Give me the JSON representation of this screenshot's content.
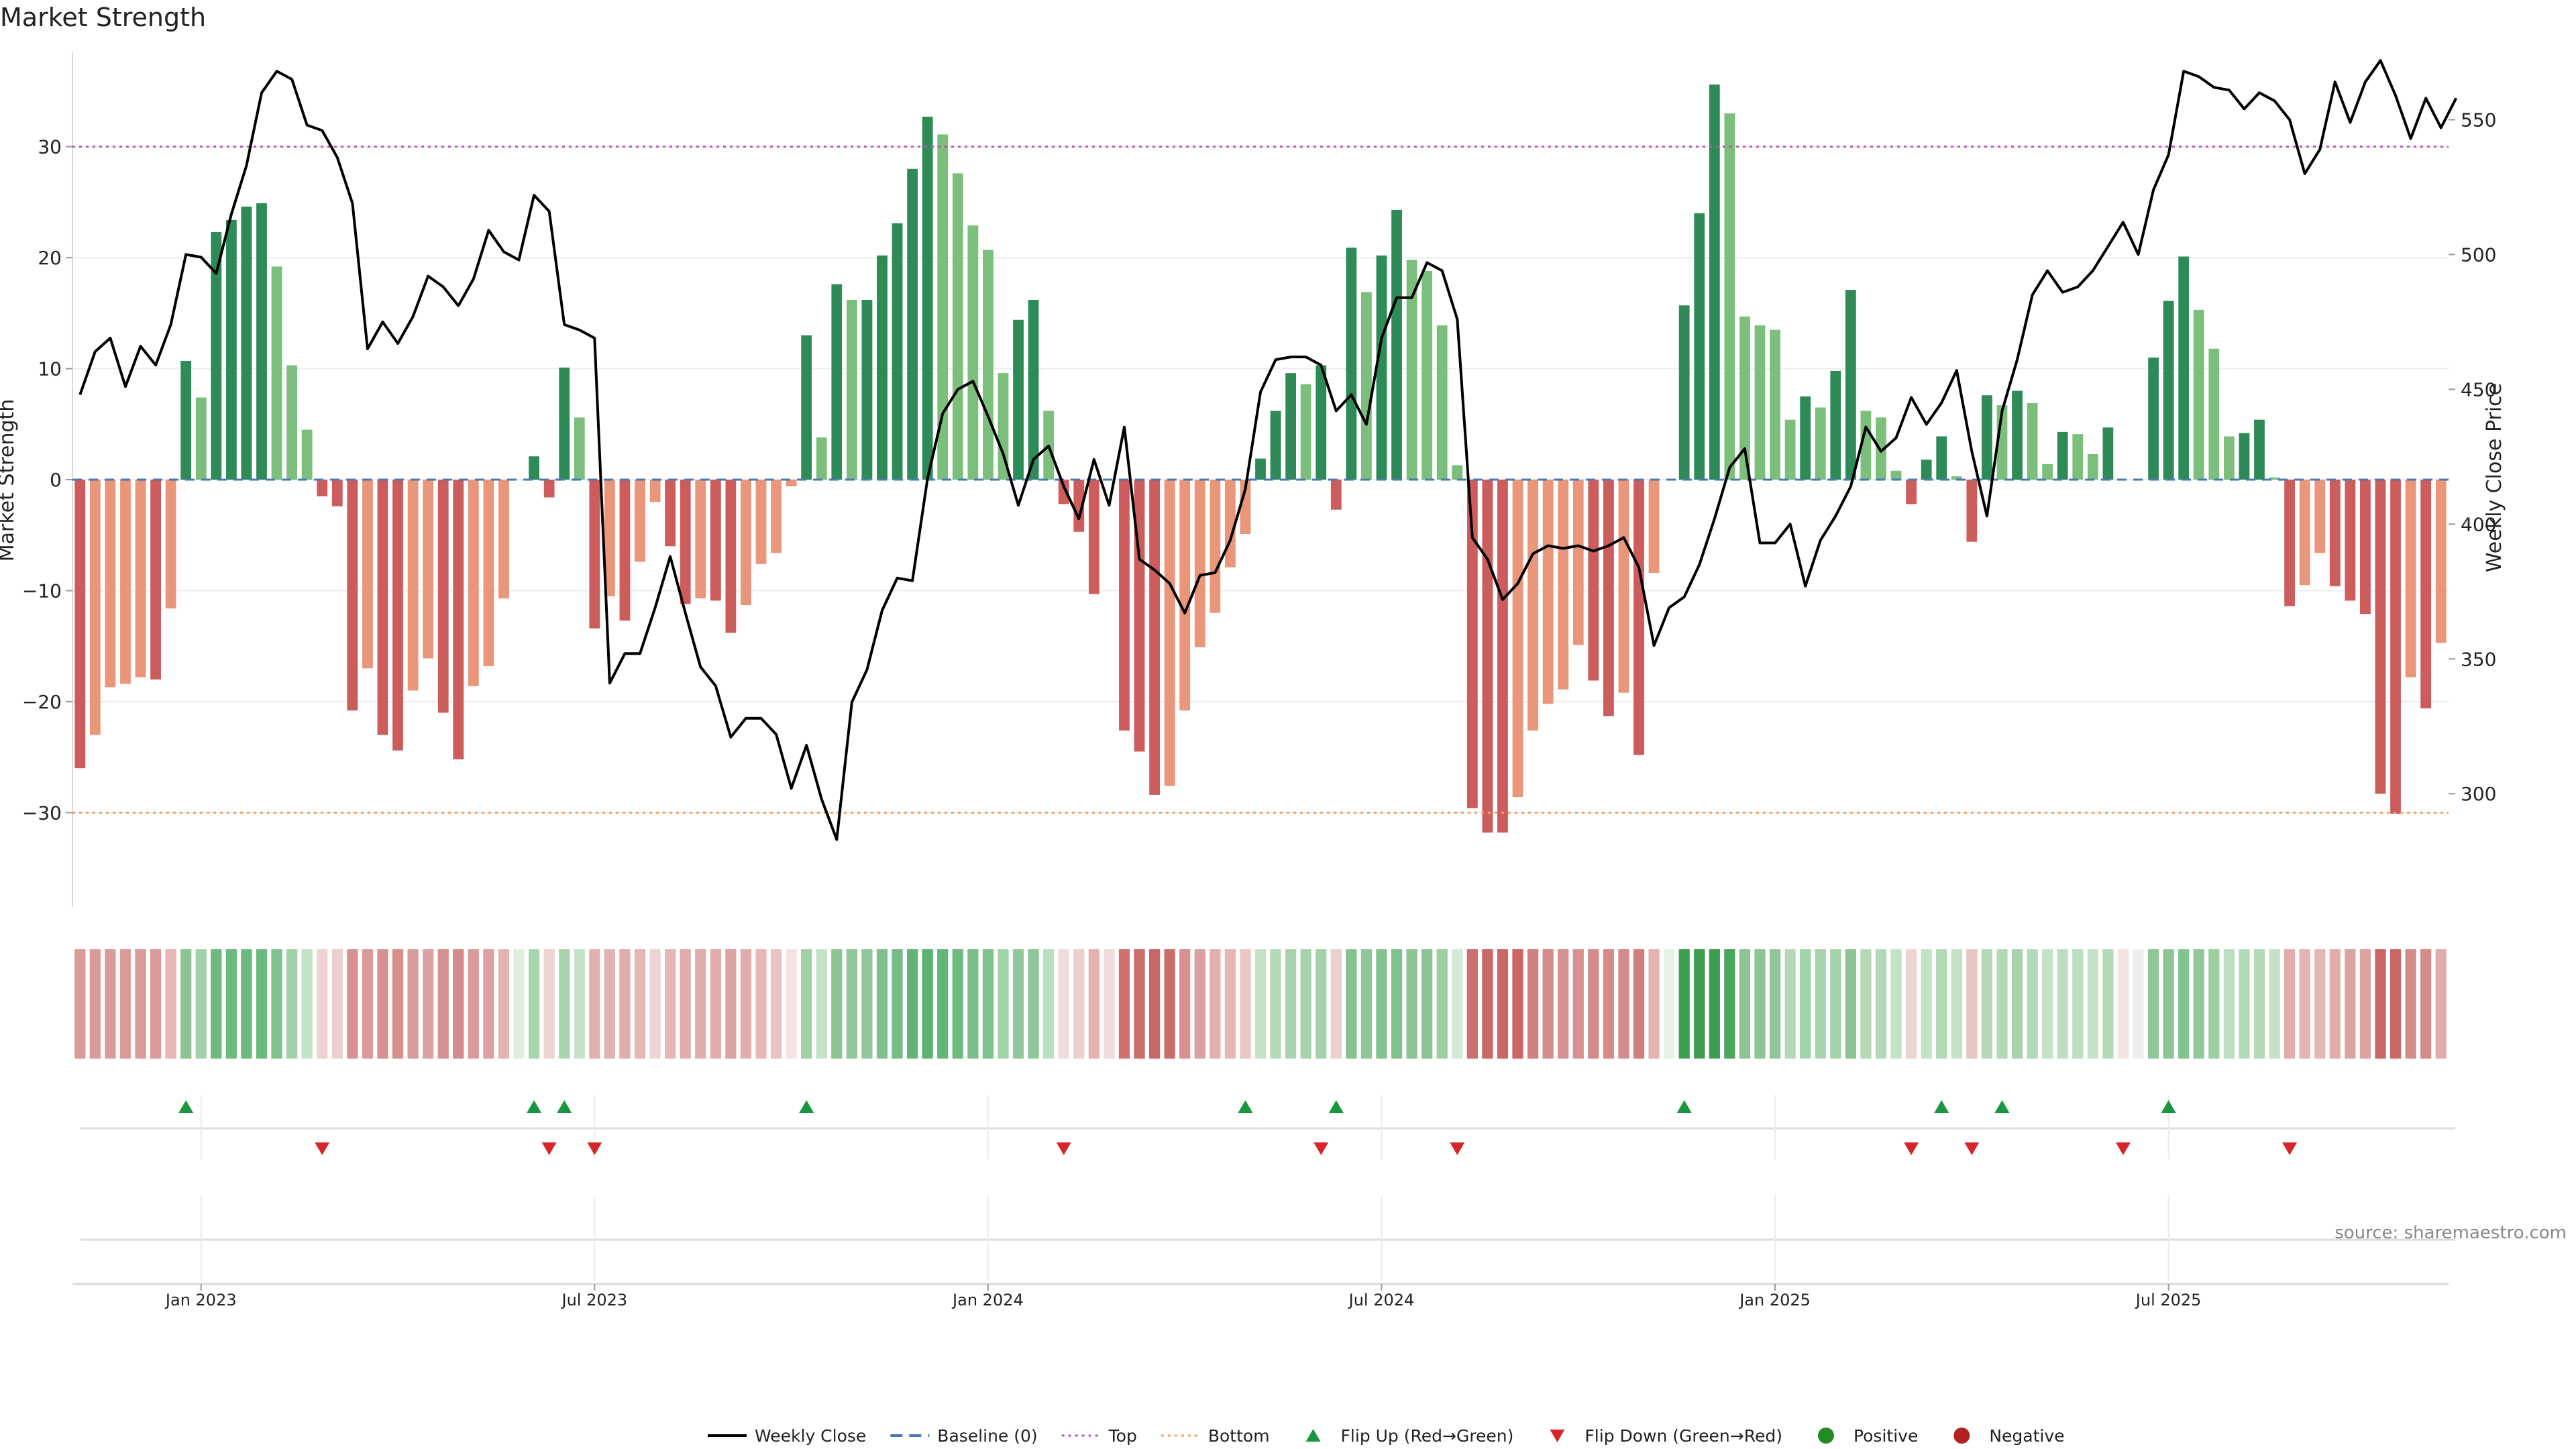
{
  "chart_data": {
    "type": "bar",
    "title": "Market Strength",
    "ylabel": "Market Strength",
    "ylabel_right": "Weekly Close Price",
    "source": "source: sharemaestro.com",
    "ylim": [
      -38.5,
      38.5
    ],
    "ylim_right": [
      258,
      575
    ],
    "y_ticks": [
      -30,
      -20,
      -10,
      0,
      10,
      20,
      30
    ],
    "y_tick_labels": [
      "−30",
      "−20",
      "−10",
      "0",
      "10",
      "20",
      "30"
    ],
    "y_right_ticks": [
      300,
      350,
      400,
      450,
      500,
      550
    ],
    "y_right_tick_labels": [
      "300",
      "350",
      "400",
      "450",
      "500",
      "550"
    ],
    "top_level": 30,
    "bottom_level": -30,
    "x_ticks": [
      8,
      34,
      60,
      86,
      112,
      138
    ],
    "x_tick_labels": [
      "Jan 2023",
      "Jul 2023",
      "Jan 2024",
      "Jul 2024",
      "Jan 2025",
      "Jul 2025"
    ],
    "strength": [
      -26,
      -23,
      -18.7,
      -18.4,
      -17.8,
      -18,
      -11.6,
      10.7,
      7.4,
      22.3,
      23.4,
      24.6,
      24.9,
      19.2,
      10.3,
      4.5,
      -1.5,
      -2.4,
      -20.8,
      -17,
      -23,
      -24.4,
      -19,
      -16.1,
      -21,
      -25.2,
      -18.6,
      -16.8,
      -10.7,
      0,
      2.1,
      -1.6,
      10.1,
      5.6,
      -13.4,
      -10.5,
      -12.7,
      -7.4,
      -2,
      -6,
      -11.2,
      -10.7,
      -10.9,
      -13.8,
      -11.3,
      -7.6,
      -6.6,
      -0.6,
      13,
      3.8,
      17.6,
      16.2,
      16.2,
      20.2,
      23.1,
      28,
      32.7,
      31.1,
      27.6,
      22.9,
      20.7,
      9.6,
      14.4,
      16.2,
      6.2,
      -2.2,
      -4.7,
      -10.3,
      0,
      -22.6,
      -24.5,
      -28.4,
      -27.6,
      -20.8,
      -15.1,
      -12,
      -7.9,
      -4.9,
      1.9,
      6.2,
      9.6,
      8.6,
      10.3,
      -2.7,
      20.9,
      16.9,
      20.2,
      24.3,
      19.8,
      18.8,
      13.9,
      1.3,
      -29.6,
      -31.8,
      -31.8,
      -28.6,
      -22.6,
      -20.2,
      -18.9,
      -14.9,
      -18.1,
      -21.3,
      -19.2,
      -24.8,
      -8.4,
      0,
      15.7,
      24,
      35.6,
      33,
      14.7,
      13.9,
      13.5,
      5.4,
      7.5,
      6.5,
      9.8,
      17.1,
      6.2,
      5.6,
      0.8,
      -2.2,
      1.8,
      3.9,
      0.3,
      -5.6,
      7.6,
      6.7,
      8,
      6.9,
      1.4,
      4.3,
      4.1,
      2.3,
      4.7,
      0,
      0,
      11,
      16.1,
      20.1,
      15.3,
      11.8,
      3.9,
      4.2,
      5.4,
      0.2,
      -11.4,
      -9.5,
      -6.6,
      -9.6,
      -10.9,
      -12.1,
      -28.3,
      -30.1,
      -17.8,
      -20.6,
      -14.7
    ],
    "price": [
      448,
      464,
      469,
      451,
      466,
      459,
      474,
      500,
      499,
      493,
      515,
      533,
      560,
      568,
      565,
      548,
      546,
      536,
      519,
      465,
      475,
      467,
      477,
      492,
      488,
      481,
      491,
      509,
      501,
      498,
      522,
      516,
      474,
      472,
      469,
      341,
      352,
      352,
      369,
      388,
      367,
      347,
      340,
      321,
      328,
      328,
      322,
      302,
      318,
      298,
      283,
      334,
      346,
      368,
      380,
      379,
      417,
      441,
      450,
      453,
      440,
      426,
      407,
      424,
      429,
      414,
      402,
      424,
      407,
      436,
      387,
      383,
      378,
      367,
      381,
      382,
      394,
      413,
      449,
      461,
      462,
      462,
      459,
      442,
      448,
      437,
      469,
      484,
      484,
      497,
      494,
      476,
      395,
      387,
      372,
      378,
      389,
      392,
      391,
      392,
      390,
      392,
      395,
      384,
      355,
      369,
      373,
      385,
      402,
      421,
      428,
      393,
      393,
      400,
      377,
      394,
      403,
      414,
      436,
      427,
      432,
      447,
      437,
      445,
      457,
      427,
      403,
      442,
      461,
      485,
      494,
      486,
      488,
      494,
      503,
      512,
      500,
      524,
      537,
      568,
      566,
      562,
      561,
      554,
      560,
      557,
      550,
      530,
      539,
      564,
      549,
      564,
      572,
      559,
      543,
      558,
      547,
      558
    ],
    "heat": [
      "#d99a9a",
      "#d99a9a",
      "#db9b9b",
      "#db9b9b",
      "#d99a9a",
      "#db9b9b",
      "#e5b7b5",
      "#8cc496",
      "#a3d1a8",
      "#6dba7f",
      "#6dba7f",
      "#6ab97d",
      "#6ab97d",
      "#7ec18d",
      "#a1d0a6",
      "#c3e2c6",
      "#edd3d1",
      "#ead0ce",
      "#d69190",
      "#d99a9a",
      "#d69190",
      "#d49089",
      "#d99a9a",
      "#dba0a0",
      "#d69190",
      "#d48b8b",
      "#d99a9a",
      "#dba0a0",
      "#e2b3b1",
      "#e0eee0",
      "#a9d5ae",
      "#edd3d1",
      "#a8d4ad",
      "#c3e2c6",
      "#e2b0ae",
      "#e2b3b1",
      "#e0adab",
      "#e5b7b5",
      "#edd3d1",
      "#e5b7b5",
      "#e0adab",
      "#e0adab",
      "#e0adab",
      "#dca3a1",
      "#e0adab",
      "#e5b7b5",
      "#e8c3c1",
      "#f3e3e2",
      "#a0d0a6",
      "#c3e2c6",
      "#8cc496",
      "#90c69a",
      "#90c69a",
      "#7ec18d",
      "#74bd85",
      "#63b577",
      "#5cb271",
      "#63b577",
      "#6dba7f",
      "#79bf89",
      "#7ec18d",
      "#a3d1a8",
      "#93c89d",
      "#90c69a",
      "#bcdfc0",
      "#efdcdb",
      "#ead0ce",
      "#e2b3b1",
      "#efdcdb",
      "#d06f6d",
      "#ca6d6c",
      "#c96766",
      "#ca6d6c",
      "#d69190",
      "#dba0a0",
      "#e2b0ae",
      "#e5b7b5",
      "#eac6c5",
      "#c3e2c6",
      "#b3d9b7",
      "#a8d4ad",
      "#a8d4ad",
      "#a3d1a8",
      "#ead0ce",
      "#83c391",
      "#90c69a",
      "#83c391",
      "#7ec18d",
      "#8cc496",
      "#8cc496",
      "#9ccea2",
      "#d3ead5",
      "#c9706e",
      "#c96766",
      "#c96766",
      "#c96766",
      "#d07f7e",
      "#d48b8b",
      "#d69190",
      "#d69190",
      "#d48b8b",
      "#d48b8b",
      "#d48b8b",
      "#d07f7e",
      "#e2b3b1",
      "#e7f2e7",
      "#3d9e51",
      "#3d9e51",
      "#3d9e51",
      "#4aa55d",
      "#8cc496",
      "#8cc496",
      "#90c69a",
      "#b3d9b7",
      "#a3d1a8",
      "#a8d4ad",
      "#a3d1a8",
      "#8cc496",
      "#b3d9b7",
      "#b3d9b7",
      "#c3e2c6",
      "#edd3d1",
      "#c3e2c6",
      "#b3d9b7",
      "#c3e2c6",
      "#e7c5c3",
      "#b3d9b7",
      "#b3d9b7",
      "#a8d4ad",
      "#b3d9b7",
      "#c3e2c6",
      "#bcdfc0",
      "#bcdfc0",
      "#c3e2c6",
      "#b3d9b7",
      "#f3e3e2",
      "#eeeeee",
      "#90c69a",
      "#8cc496",
      "#83c391",
      "#90c69a",
      "#9ccea2",
      "#bcdfc0",
      "#b3d9b7",
      "#b3d9b7",
      "#c3e2c6",
      "#e0adab",
      "#e2b3b1",
      "#e5b7b5",
      "#e0adab",
      "#dca3a1",
      "#dca3a1",
      "#c96766",
      "#c96766",
      "#d48b8b",
      "#d48b8b",
      "#e0adab"
    ],
    "flip_up": [
      7,
      30,
      32,
      48,
      77,
      83,
      106,
      123,
      127,
      138
    ],
    "flip_down": [
      16,
      31,
      34,
      65,
      82,
      91,
      121,
      125,
      135,
      146
    ],
    "legend": [
      "Weekly Close",
      "Baseline (0)",
      "Top",
      "Bottom",
      "Flip Up (Red→Green)",
      "Flip Down (Green→Red)",
      "Positive",
      "Negative"
    ],
    "colors": {
      "pos_strong": "#2e8b57",
      "pos_weak": "#7cbf7c",
      "neg_strong": "#cd5c5c",
      "neg_weak": "#e9967a",
      "price_line": "#000000",
      "baseline": "#4a7ab5",
      "top": "#b05bb0",
      "bottom": "#f0a060",
      "flip_up": "#1a9641",
      "flip_down": "#d7262b",
      "positive_dot": "#228b22",
      "negative_dot": "#b22222"
    }
  }
}
